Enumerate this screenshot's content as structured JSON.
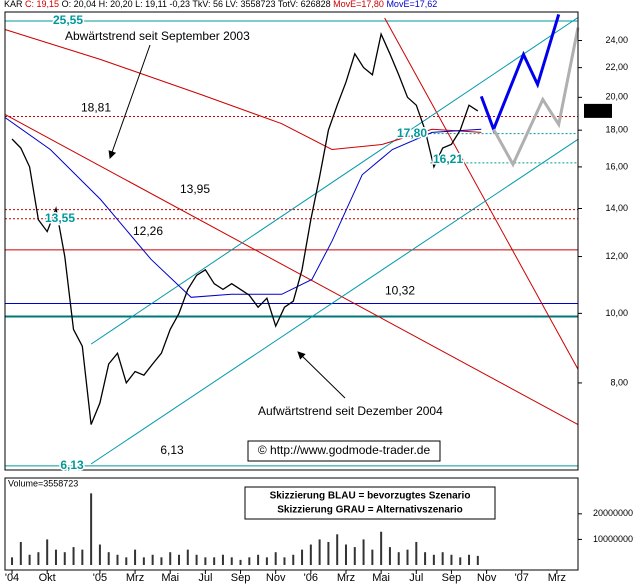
{
  "chart_data": {
    "type": "stock",
    "header": [
      {
        "text": "KAR",
        "color": "#000000"
      },
      {
        "text": "C: 19,15",
        "color": "#cc0000"
      },
      {
        "text": "O: 20,04  H: 20,20  L: 19,11  -0,23  TkV: 56  LV: 3558723  TotV: 626828",
        "color": "#000000"
      },
      {
        "text": "MovE=17,80",
        "color": "#cc0000"
      },
      {
        "text": "MovE=17,62",
        "color": "#0000cc"
      }
    ],
    "log_scale": true,
    "xlim": [
      -0.4,
      32.2
    ],
    "xticks": [
      {
        "value": 0,
        "label": "'04"
      },
      {
        "value": 2,
        "label": "Okt"
      },
      {
        "value": 5,
        "label": "'05"
      },
      {
        "value": 7,
        "label": "Mrz"
      },
      {
        "value": 9,
        "label": "Mai"
      },
      {
        "value": 11,
        "label": "Jul"
      },
      {
        "value": 13,
        "label": "Sep"
      },
      {
        "value": 15,
        "label": "Nov"
      },
      {
        "value": 17,
        "label": "'06"
      },
      {
        "value": 19,
        "label": "Mrz"
      },
      {
        "value": 21,
        "label": "Mai"
      },
      {
        "value": 23,
        "label": "Jul"
      },
      {
        "value": 25,
        "label": "Sep"
      },
      {
        "value": 27,
        "label": "Nov"
      },
      {
        "value": 29,
        "label": "'07"
      },
      {
        "value": 31,
        "label": "Mrz"
      }
    ],
    "ylim": [
      6.05,
      26.3
    ],
    "yticks": [
      {
        "value": 8,
        "label": "8,00"
      },
      {
        "value": 10,
        "label": "10,00"
      },
      {
        "value": 12,
        "label": "12,00"
      },
      {
        "value": 14,
        "label": "14,00"
      },
      {
        "value": 16,
        "label": "16,00"
      },
      {
        "value": 18,
        "label": "18,00"
      },
      {
        "value": 20,
        "label": "20,00"
      },
      {
        "value": 22,
        "label": "22,00"
      },
      {
        "value": 24,
        "label": "24,00"
      }
    ],
    "price": {
      "color": "#000000",
      "x": [
        0,
        0.5,
        1,
        1.5,
        2,
        2.5,
        3,
        3.5,
        4,
        4.5,
        5,
        5.5,
        6,
        6.5,
        7,
        7.5,
        8,
        8.5,
        9,
        9.5,
        10,
        10.5,
        11,
        11.5,
        12,
        12.5,
        13,
        13.5,
        14,
        14.5,
        15,
        15.5,
        16,
        16.5,
        17,
        17.5,
        18,
        18.5,
        19,
        19.5,
        20,
        20.5,
        21,
        21.5,
        22,
        22.5,
        23,
        23.5,
        24,
        24.5,
        25,
        25.5,
        26,
        26.5
      ],
      "values": [
        17.5,
        17,
        16,
        13.5,
        13,
        14,
        12,
        9.5,
        9,
        7,
        7.5,
        8.5,
        8.8,
        8,
        8.3,
        8.2,
        8.5,
        8.8,
        9.5,
        10,
        10.8,
        11.3,
        11.5,
        11,
        10.8,
        11,
        10.8,
        10.6,
        10.2,
        10.5,
        9.6,
        10.2,
        10.4,
        11.5,
        13.5,
        15.5,
        18,
        19.5,
        21,
        23,
        22,
        21.5,
        24.5,
        23,
        21.5,
        20,
        19.5,
        18,
        16,
        17,
        17.2,
        18,
        19.5,
        19.15
      ]
    },
    "last": {
      "value": 19.15,
      "label": "19,15"
    },
    "averages": [
      {
        "color": "#cc0000",
        "x": [
          -0.4,
          5.04,
          10.76,
          15.34,
          18.2,
          21.07,
          23.9,
          26.7
        ],
        "values": [
          24.86,
          22.58,
          20.18,
          18.38,
          16.92,
          17.2,
          18.05,
          17.87
        ]
      },
      {
        "color": "#0000cc",
        "x": [
          -0.4,
          2.18,
          5.04,
          7.9,
          10.19,
          12.48,
          15.34,
          17.06,
          18.2,
          19.92,
          21.64,
          23.9,
          26.7
        ],
        "values": [
          18.75,
          16.92,
          14.41,
          11.9,
          10.53,
          10.63,
          10.63,
          11.15,
          12.6,
          15.6,
          16.92,
          17.87,
          18.05
        ]
      }
    ],
    "forecasts": [
      {
        "color": "#0000ee",
        "x": [
          26.7,
          27.4,
          29.1,
          29.9,
          31.1
        ],
        "values": [
          20.06,
          18.05,
          22.95,
          20.84,
          26.1
        ]
      },
      {
        "color": "#b0b0b0",
        "x": [
          27.4,
          28.5,
          30.2,
          31.1,
          32.2
        ],
        "values": [
          18.05,
          16.13,
          19.86,
          18.34,
          25.02
        ]
      }
    ],
    "trendlines": [
      {
        "color": "#cc0000",
        "x": [
          -0.4,
          32.2
        ],
        "values": [
          18.93,
          7.0
        ]
      },
      {
        "color": "#cc0000",
        "x": [
          21.2,
          32.2
        ],
        "values": [
          25.8,
          8.36
        ]
      },
      {
        "color": "#0099aa",
        "x": [
          4.5,
          32.2
        ],
        "values": [
          9.06,
          25.84
        ]
      },
      {
        "color": "#0099aa",
        "x": [
          4.5,
          32.2
        ],
        "values": [
          6.17,
          17.48
        ]
      }
    ],
    "levels": [
      {
        "value": 25.55,
        "label": "25,55",
        "color": "#009999",
        "label_color": "#009999",
        "style": "solid"
      },
      {
        "value": 18.81,
        "label": "18,81",
        "color": "#cc0000",
        "label_color": "#000000",
        "style": "dotted"
      },
      {
        "value": 17.8,
        "label": "17,80",
        "color": "#009999",
        "label_color": "#009999",
        "style": "dotted",
        "x_from": 23.3
      },
      {
        "value": 16.21,
        "label": "16,21",
        "color": "#009999",
        "label_color": "#009999",
        "style": "dotted",
        "x_from": 23.8
      },
      {
        "value": 13.95,
        "label": "13,95",
        "color": "#cc0000",
        "label_color": "#000000",
        "style": "dotted"
      },
      {
        "value": 13.55,
        "label": "13,55",
        "color": "#cc0000",
        "label_color": "#009999",
        "style": "dotted"
      },
      {
        "value": 12.26,
        "label": "12,26",
        "color": "#cc0000",
        "label_color": "#000000",
        "style": "solid"
      },
      {
        "value": 10.32,
        "label": "10,32",
        "color": "#0000cc",
        "label_color": "#000000",
        "style": "solid"
      },
      {
        "value": 9.9,
        "color": "#007777",
        "style": "thick"
      },
      {
        "value": 6.13,
        "label": "6,13",
        "color": "#009999",
        "label_color": "#009999",
        "style": "solid"
      }
    ],
    "annotations": [
      {
        "text": "Abwärtstrend seit September 2003"
      },
      {
        "text": "Aufwärtstrend seit Dezember 2004"
      },
      {
        "text": "6,13"
      },
      {
        "text": "© http://www.godmode-trader.de"
      }
    ],
    "legend": [
      "Skizzierung BLAU = bevorzugtes Szenario",
      "Skizzierung GRAU = Alternativszenario"
    ],
    "volume": {
      "label": "Volume=3558723",
      "color": "#333333",
      "ylim": [
        0,
        34000000
      ],
      "yticks": [
        10000000,
        20000000
      ],
      "values": [
        3000000,
        9000000,
        4000000,
        5000000,
        10000000,
        6000000,
        5000000,
        7000000,
        6000000,
        28000000,
        8000000,
        5000000,
        4000000,
        3000000,
        6000000,
        3000000,
        4000000,
        3000000,
        5000000,
        4000000,
        6000000,
        4000000,
        3000000,
        3000000,
        4000000,
        3000000,
        2000000,
        3000000,
        4000000,
        3000000,
        5000000,
        3000000,
        4000000,
        6000000,
        8000000,
        10000000,
        9000000,
        12000000,
        8000000,
        7000000,
        10000000,
        6000000,
        13000000,
        7000000,
        5000000,
        6000000,
        9000000,
        5000000,
        4000000,
        5000000,
        4000000,
        3000000,
        4000000,
        3558723
      ]
    }
  }
}
